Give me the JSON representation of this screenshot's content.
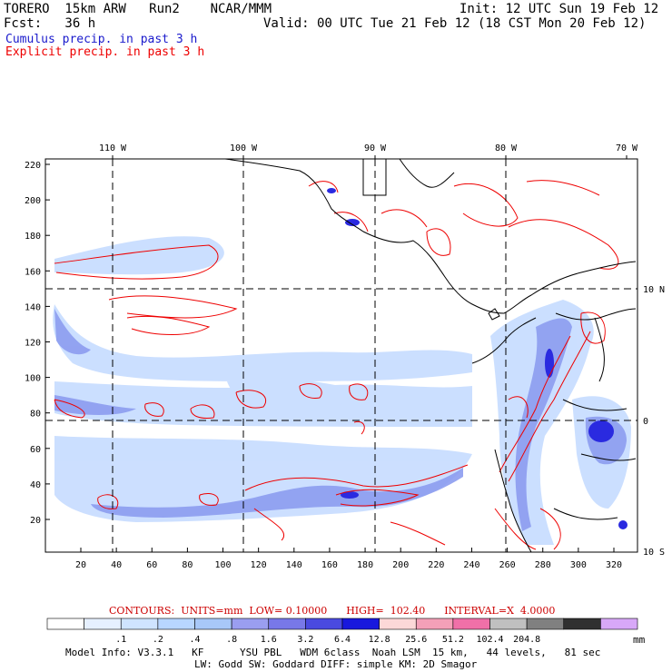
{
  "header": {
    "model": "TORERO  15km ARW   Run2    NCAR/MMM",
    "init": "Init: 12 UTC Sun 19 Feb 12",
    "fcst": "Fcst:   36 h",
    "valid": "Valid: 00 UTC Tue 21 Feb 12 (18 CST Mon 20 Feb 12)",
    "legend_cumulus": "Cumulus precip. in past 3 h",
    "legend_explicit": "Explicit precip. in past 3 h",
    "colors": {
      "cumulus": "#1a1acc",
      "explicit": "#ee0000"
    }
  },
  "map": {
    "top_lon_labels": [
      "110 W",
      "100 W",
      "90 W",
      "80 W",
      "70 W"
    ],
    "right_lat_labels": [
      "10 N",
      "0",
      "10 S"
    ],
    "left_y_ticks": [
      "220",
      "200",
      "180",
      "160",
      "140",
      "120",
      "100",
      "80",
      "60",
      "40",
      "20"
    ],
    "bottom_x_ticks": [
      "20",
      "40",
      "60",
      "80",
      "100",
      "120",
      "140",
      "160",
      "180",
      "200",
      "220",
      "240",
      "260",
      "280",
      "300",
      "320"
    ]
  },
  "contours": {
    "text": "CONTOURS:  UNITS=mm  LOW= 0.10000      HIGH=  102.40      INTERVAL=X  4.0000"
  },
  "colorbar": {
    "colors": [
      "#ffffff",
      "#e6f0ff",
      "#cfe4ff",
      "#b8d6ff",
      "#a8c8f8",
      "#9a9ef0",
      "#7878e8",
      "#4a4ae0",
      "#1818dd",
      "#fcd8d8",
      "#f4a0b8",
      "#f070a8",
      "#c0c0c0",
      "#808080",
      "#303030",
      "#d8a8f8"
    ],
    "labels": [
      ".1",
      ".2",
      ".4",
      ".8",
      "1.6",
      "3.2",
      "6.4",
      "12.8",
      "25.6",
      "51.2",
      "102.4",
      "204.8"
    ],
    "unit": "mm"
  },
  "footer": {
    "line1": "Model Info: V3.3.1   KF      YSU PBL   WDM 6class  Noah LSM  15 km,   44 levels,   81 sec",
    "line2": "LW: Godd SW: Goddard DIFF: simple KM: 2D Smagor"
  }
}
